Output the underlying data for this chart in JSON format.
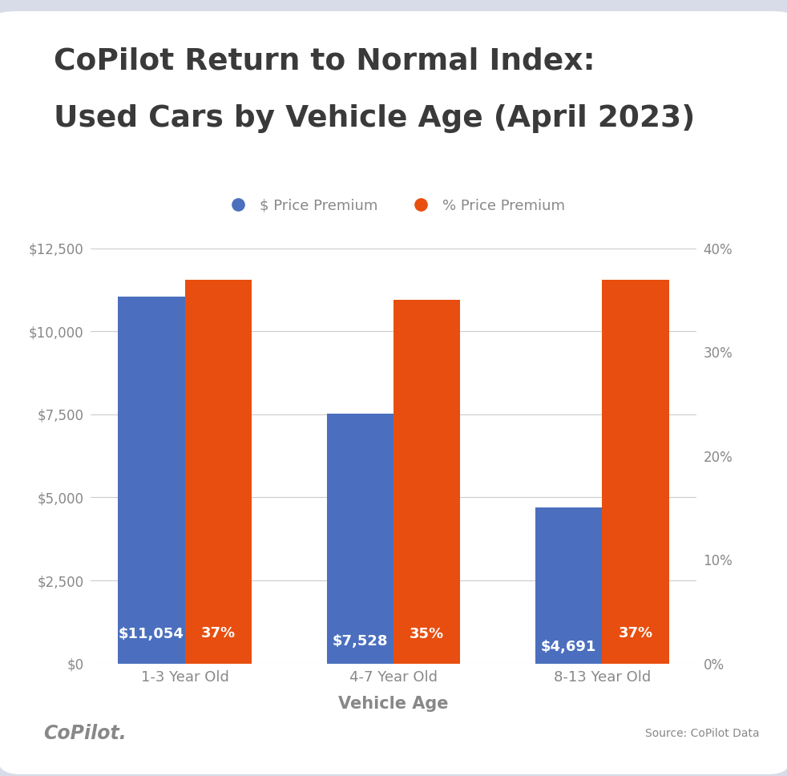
{
  "title_line1": "CoPilot Return to Normal Index:",
  "title_line2": "Used Cars by Vehicle Age (April 2023)",
  "categories": [
    "1-3 Year Old",
    "4-7 Year Old",
    "8-13 Year Old"
  ],
  "dollar_values": [
    11054,
    7528,
    4691
  ],
  "pct_values": [
    37,
    35,
    37
  ],
  "dollar_labels": [
    "$11,054",
    "$7,528",
    "$4,691"
  ],
  "pct_labels": [
    "37%",
    "35%",
    "37%"
  ],
  "bar_color_blue": "#4B6FBE",
  "bar_color_orange": "#E84E0F",
  "legend_label_blue": "$ Price Premium",
  "legend_label_orange": "% Price Premium",
  "xlabel": "Vehicle Age",
  "ylim_left": [
    0,
    12500
  ],
  "ylim_right": [
    0,
    0.4
  ],
  "yticks_left": [
    0,
    2500,
    5000,
    7500,
    10000,
    12500
  ],
  "yticks_right": [
    0,
    0.1,
    0.2,
    0.3,
    0.4
  ],
  "ytick_labels_left": [
    "$0",
    "$2,500",
    "$5,000",
    "$7,500",
    "$10,000",
    "$12,500"
  ],
  "ytick_labels_right": [
    "0%",
    "10%",
    "20%",
    "30%",
    "40%"
  ],
  "background_outer": "#d8dce8",
  "background_white": "#ffffff",
  "title_color": "#3a3a3a",
  "tick_color": "#888888",
  "grid_color": "#cccccc",
  "source_text": "Source: CoPilot Data",
  "copilot_text": "CoPilot.",
  "bar_width": 0.32,
  "bar_label_fontsize": 13,
  "title_fontsize": 27,
  "legend_fontsize": 13,
  "tick_fontsize": 12,
  "xlabel_fontsize": 15
}
